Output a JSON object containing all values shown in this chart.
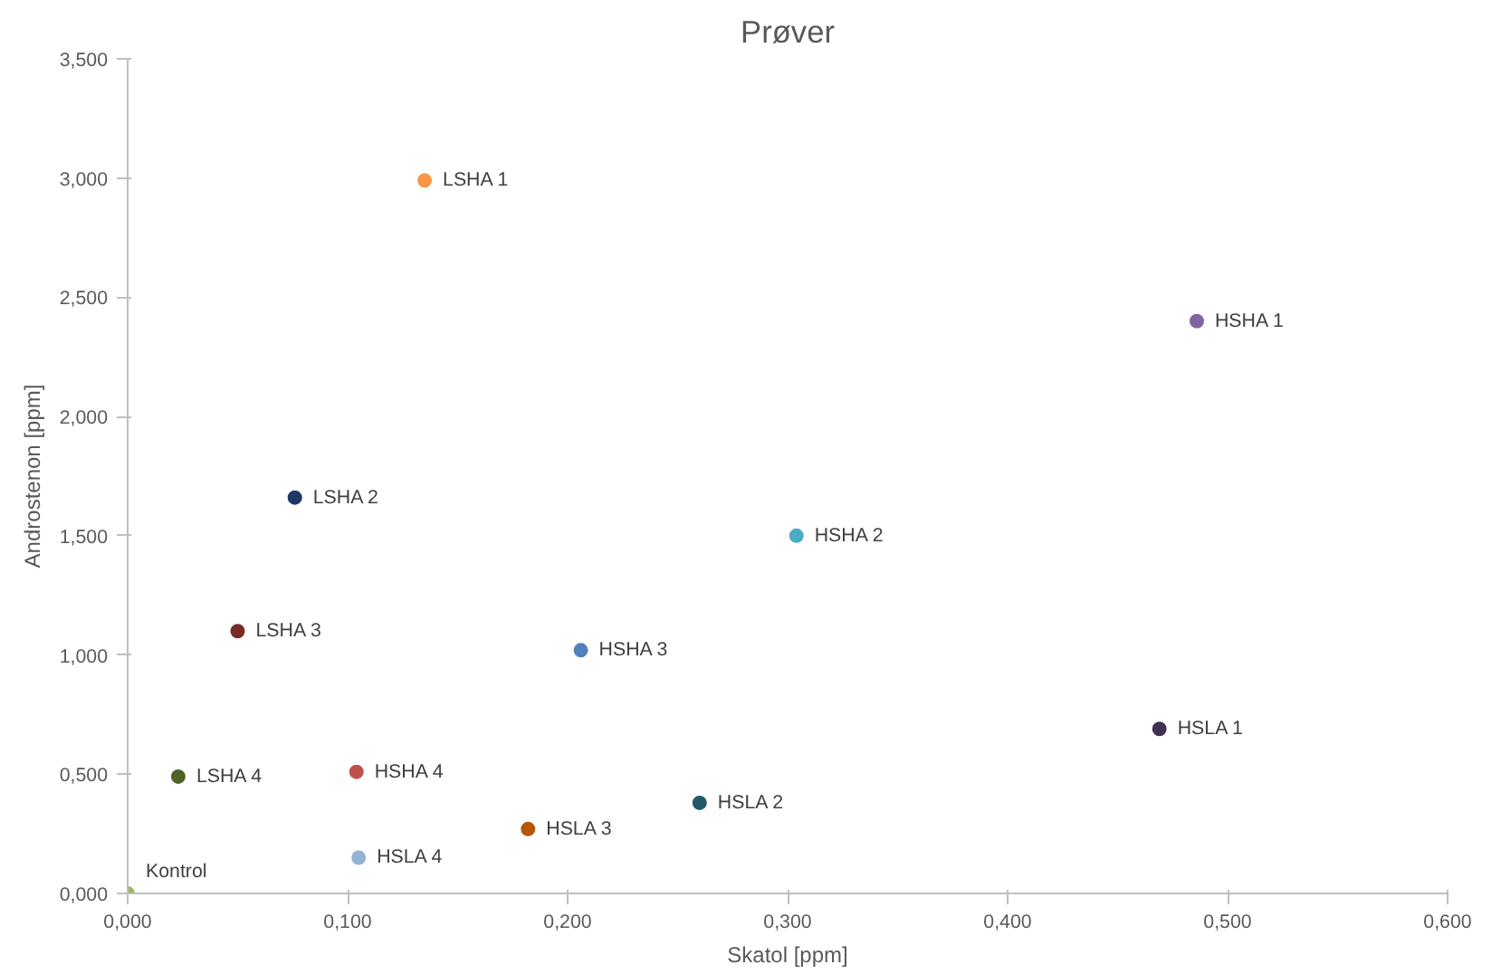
{
  "chart_data": {
    "type": "scatter",
    "title": "Prøver",
    "xlabel": "Skatol [ppm]",
    "ylabel": "Androstenon [ppm]",
    "xlim": [
      0,
      0.6
    ],
    "ylim": [
      0,
      3.5
    ],
    "xticks": [
      {
        "value": 0,
        "label": "0,000"
      },
      {
        "value": 0.1,
        "label": "0,100"
      },
      {
        "value": 0.2,
        "label": "0,200"
      },
      {
        "value": 0.3,
        "label": "0,300"
      },
      {
        "value": 0.4,
        "label": "0,400"
      },
      {
        "value": 0.5,
        "label": "0,500"
      },
      {
        "value": 0.6,
        "label": "0,600"
      }
    ],
    "yticks": [
      {
        "value": 0,
        "label": "0,000"
      },
      {
        "value": 0.5,
        "label": "0,500"
      },
      {
        "value": 1,
        "label": "1,000"
      },
      {
        "value": 1.5,
        "label": "1,500"
      },
      {
        "value": 2,
        "label": "2,000"
      },
      {
        "value": 2.5,
        "label": "2,500"
      },
      {
        "value": 3,
        "label": "3,000"
      },
      {
        "value": 3.5,
        "label": "3,500"
      }
    ],
    "grid": false,
    "marker": "circle",
    "series": [
      {
        "name": "LSHA 1",
        "color": "#f79646",
        "x": [
          0.135
        ],
        "values": [
          2.99
        ]
      },
      {
        "name": "HSHA 1",
        "color": "#8064a2",
        "x": [
          0.486
        ],
        "values": [
          2.4
        ]
      },
      {
        "name": "LSHA 2",
        "color": "#1f3864",
        "x": [
          0.076
        ],
        "values": [
          1.66
        ]
      },
      {
        "name": "HSHA 2",
        "color": "#4bacc6",
        "x": [
          0.304
        ],
        "values": [
          1.5
        ]
      },
      {
        "name": "LSHA 3",
        "color": "#772c2a",
        "x": [
          0.05
        ],
        "values": [
          1.1
        ]
      },
      {
        "name": "HSHA 3",
        "color": "#4f81bd",
        "x": [
          0.206
        ],
        "values": [
          1.02
        ]
      },
      {
        "name": "HSLA 1",
        "color": "#3f3151",
        "x": [
          0.469
        ],
        "values": [
          0.69
        ]
      },
      {
        "name": "LSHA 4",
        "color": "#4f6228",
        "x": [
          0.023
        ],
        "values": [
          0.49
        ]
      },
      {
        "name": "HSHA 4",
        "color": "#c0504d",
        "x": [
          0.104
        ],
        "values": [
          0.51
        ]
      },
      {
        "name": "HSLA 2",
        "color": "#215968",
        "x": [
          0.26
        ],
        "values": [
          0.38
        ]
      },
      {
        "name": "HSLA 3",
        "color": "#b65708",
        "x": [
          0.182
        ],
        "values": [
          0.27
        ]
      },
      {
        "name": "HSLA 4",
        "color": "#95b3d7",
        "x": [
          0.105
        ],
        "values": [
          0.15
        ]
      },
      {
        "name": "Kontrol",
        "color": "#9bbb59",
        "x": [
          0
        ],
        "values": [
          0
        ]
      }
    ]
  }
}
